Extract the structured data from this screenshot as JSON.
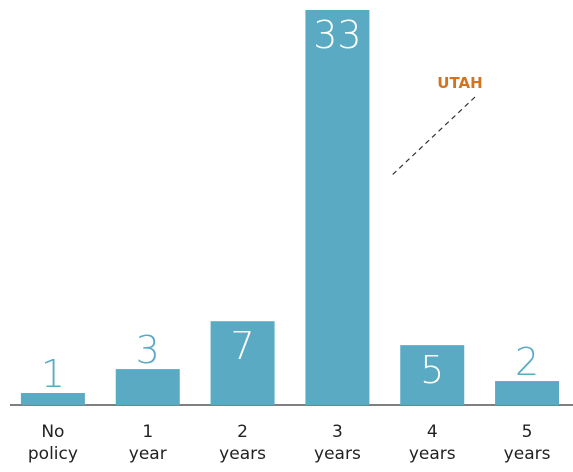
{
  "chart_data": {
    "type": "bar",
    "categories": [
      "No policy",
      "1 year",
      "2 years",
      "3 years",
      "4 years",
      "5 years"
    ],
    "values": [
      1,
      3,
      7,
      33,
      5,
      2
    ],
    "color": "#5aaac4",
    "ylim": [
      0,
      33
    ],
    "annotations": [
      {
        "text": "UTAH",
        "color": "#d4731f"
      }
    ]
  }
}
